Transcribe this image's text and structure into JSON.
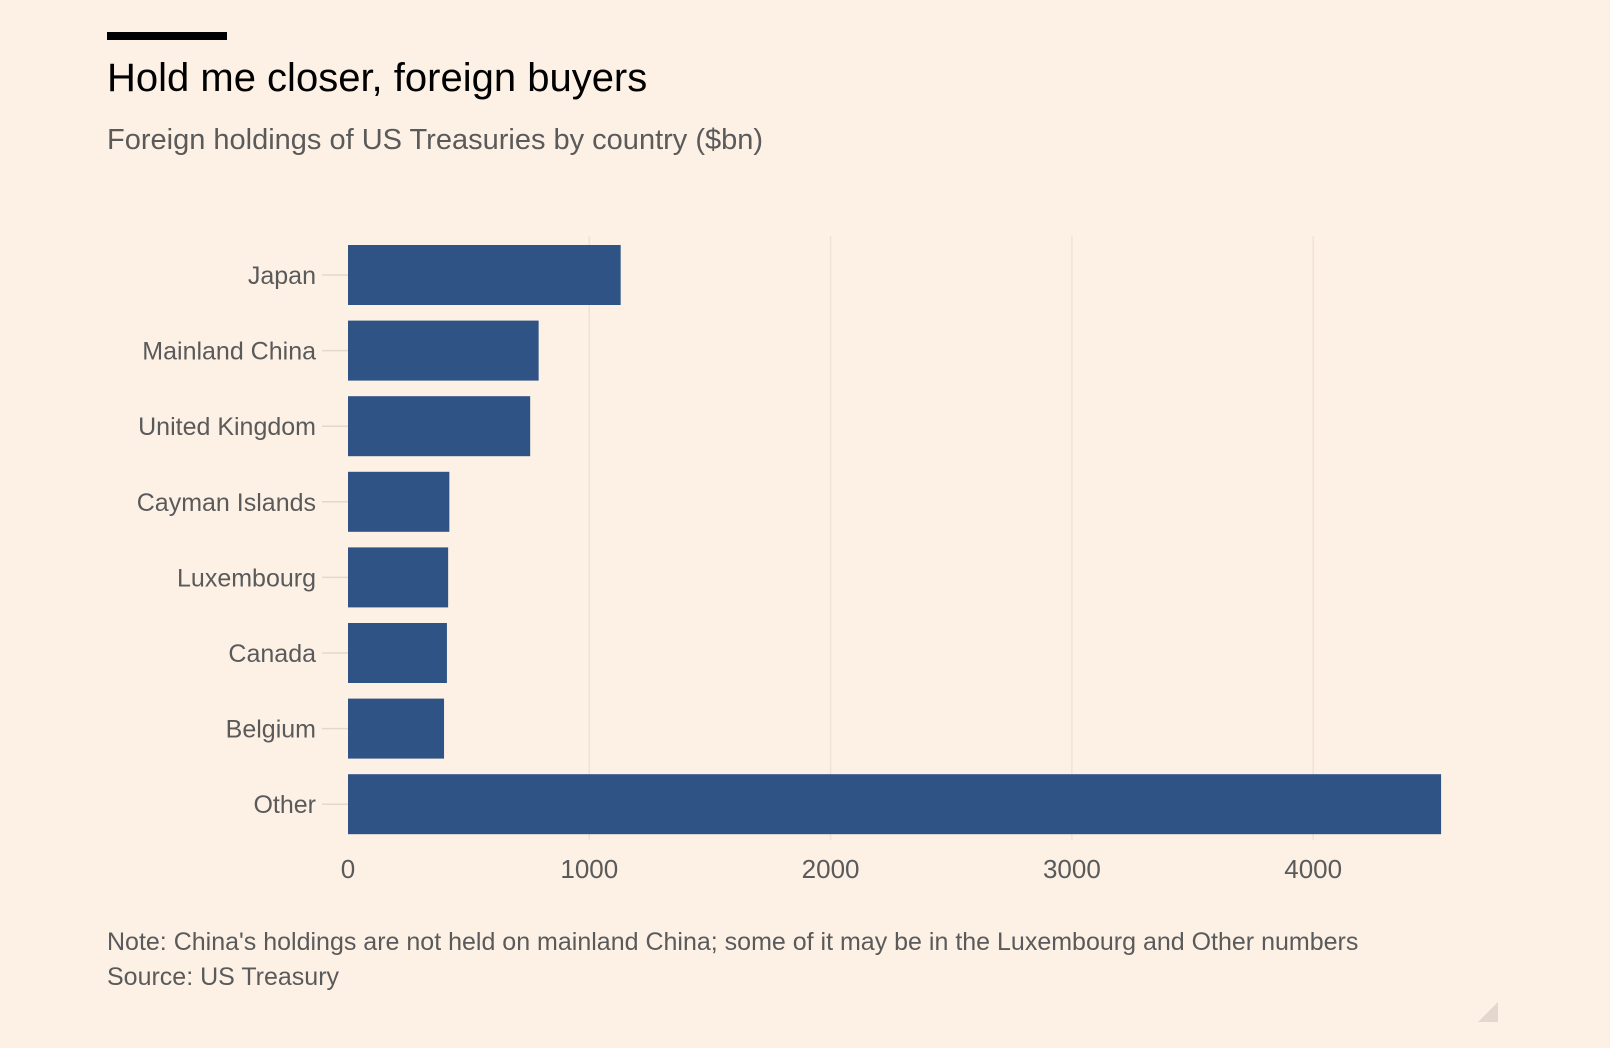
{
  "header": {
    "title": "Hold me closer, foreign buyers",
    "subtitle": "Foreign holdings of US Treasuries by country ($bn)"
  },
  "footer": {
    "note": "Note: China's holdings are not held on mainland China; some of it may be in the Luxembourg and Other numbers",
    "source": "Source: US Treasury"
  },
  "colors": {
    "background": "#fdf1e6",
    "bar": "#2e5384",
    "label": "#5a5a5a",
    "title": "#000000"
  },
  "chart_data": {
    "type": "bar",
    "orientation": "horizontal",
    "title": "Hold me closer, foreign buyers",
    "subtitle": "Foreign holdings of US Treasuries by country ($bn)",
    "categories": [
      "Japan",
      "Mainland China",
      "United Kingdom",
      "Cayman Islands",
      "Luxembourg",
      "Canada",
      "Belgium",
      "Other"
    ],
    "values": [
      1130,
      790,
      755,
      420,
      415,
      410,
      398,
      4530
    ],
    "xlim": [
      0,
      4530
    ],
    "xticks": [
      0,
      1000,
      2000,
      3000,
      4000
    ],
    "xlabel": "",
    "ylabel": "",
    "grid": "vertical",
    "legend": "none"
  }
}
